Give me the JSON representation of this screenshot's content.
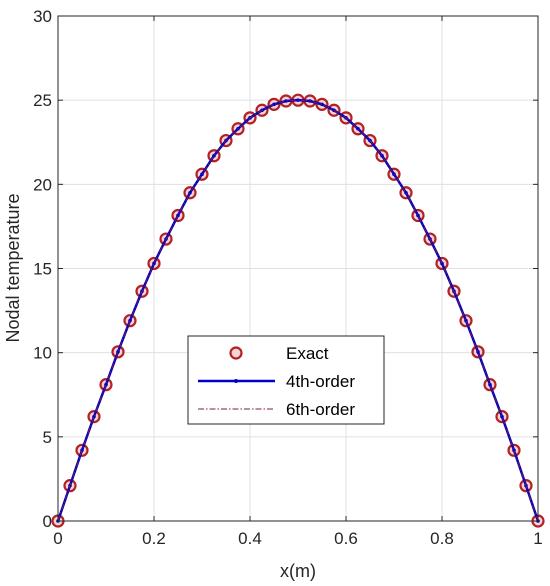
{
  "chart_data": {
    "type": "line",
    "title": "",
    "xlabel": "x(m)",
    "ylabel": "Nodal temperature",
    "xlim": [
      0,
      1
    ],
    "ylim": [
      0,
      30
    ],
    "xticks": [
      0,
      0.2,
      0.4,
      0.6,
      0.8,
      1
    ],
    "xtick_labels": [
      "0",
      "0.2",
      "0.4",
      "0.6",
      "0.8",
      "1"
    ],
    "yticks": [
      0,
      5,
      10,
      15,
      20,
      25,
      30
    ],
    "ytick_labels": [
      "0",
      "5",
      "10",
      "15",
      "20",
      "25",
      "30"
    ],
    "grid": true,
    "legend_position": "center-bottom",
    "x": [
      0,
      0.025,
      0.05,
      0.075,
      0.1,
      0.125,
      0.15,
      0.175,
      0.2,
      0.225,
      0.25,
      0.275,
      0.3,
      0.325,
      0.35,
      0.375,
      0.4,
      0.425,
      0.45,
      0.475,
      0.5,
      0.525,
      0.55,
      0.575,
      0.6,
      0.625,
      0.65,
      0.675,
      0.7,
      0.725,
      0.75,
      0.775,
      0.8,
      0.825,
      0.85,
      0.875,
      0.9,
      0.925,
      0.95,
      0.975,
      1
    ],
    "series": [
      {
        "name": "Exact",
        "style": "markers",
        "color": "#b22222",
        "values": [
          0,
          2.1,
          4.2,
          6.2,
          8.1,
          10.05,
          11.9,
          13.65,
          15.3,
          16.75,
          18.15,
          19.5,
          20.6,
          21.7,
          22.6,
          23.3,
          23.95,
          24.4,
          24.75,
          24.95,
          25.0,
          24.95,
          24.75,
          24.4,
          23.95,
          23.3,
          22.6,
          21.7,
          20.6,
          19.5,
          18.15,
          16.75,
          15.3,
          13.65,
          11.9,
          10.05,
          8.1,
          6.2,
          4.2,
          2.1,
          0
        ]
      },
      {
        "name": "4th-order",
        "style": "line",
        "color": "#0000cc",
        "values": [
          0,
          2.1,
          4.2,
          6.2,
          8.1,
          10.05,
          11.9,
          13.65,
          15.3,
          16.75,
          18.15,
          19.5,
          20.6,
          21.7,
          22.6,
          23.3,
          23.95,
          24.4,
          24.75,
          24.95,
          25.0,
          24.95,
          24.75,
          24.4,
          23.95,
          23.3,
          22.6,
          21.7,
          20.6,
          19.5,
          18.15,
          16.75,
          15.3,
          13.65,
          11.9,
          10.05,
          8.1,
          6.2,
          4.2,
          2.1,
          0
        ]
      },
      {
        "name": "6th-order",
        "style": "dashdot",
        "color": "#7a1f2b",
        "values": [
          0,
          2.1,
          4.2,
          6.2,
          8.1,
          10.05,
          11.9,
          13.65,
          15.3,
          16.75,
          18.15,
          19.5,
          20.6,
          21.7,
          22.6,
          23.3,
          23.95,
          24.4,
          24.75,
          24.95,
          25.0,
          24.95,
          24.75,
          24.4,
          23.95,
          23.3,
          22.6,
          21.7,
          20.6,
          19.5,
          18.15,
          16.75,
          15.3,
          13.65,
          11.9,
          10.05,
          8.1,
          6.2,
          4.2,
          2.1,
          0
        ]
      }
    ]
  }
}
